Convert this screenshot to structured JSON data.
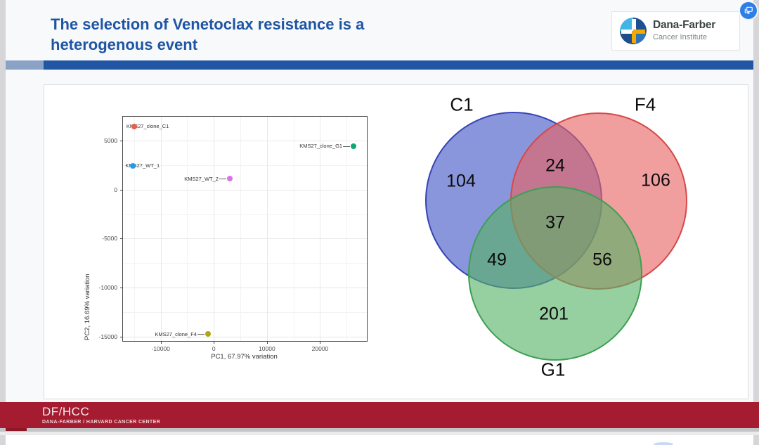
{
  "slide": {
    "title_lines": [
      "The selection of Venetoclax resistance is a",
      "heterogenous event"
    ],
    "title_color": "#1e55a4",
    "accent_bar_dark": "#2156a4",
    "accent_bar_light": "#8ba2c7"
  },
  "logo": {
    "name": "Dana-Farber",
    "subtitle": "Cancer Institute",
    "icon": "dana-farber-pinwheel-icon",
    "colors": {
      "light_blue": "#41b6e6",
      "navy": "#1d4f91",
      "blue": "#2e75b6",
      "orange": "#f5a800"
    }
  },
  "badge": {
    "icon": "present-to-display-icon",
    "color": "#2d7ee9"
  },
  "footer": {
    "acronym": "DF/HCC",
    "subtitle": "DANA-FARBER / HARVARD CANCER CENTER",
    "background": "#a51c30"
  },
  "chart_data": [
    {
      "type": "scatter",
      "title": "",
      "xlabel": "PC1, 67.97% variation",
      "ylabel": "PC2, 16.69% variation",
      "xlim": [
        -17100,
        28800
      ],
      "ylim": [
        -15400,
        7400
      ],
      "xticks": [
        -10000,
        0,
        10000,
        20000
      ],
      "yticks": [
        5000,
        0,
        -5000,
        -10000,
        -15000
      ],
      "grid": true,
      "points": [
        {
          "label": "KMS27_clone_C1",
          "x": -15000,
          "y": 6400,
          "color": "#e8604c",
          "connector": false
        },
        {
          "label": "KMS27_WT_1",
          "x": -15200,
          "y": 2400,
          "color": "#2499f0",
          "connector": false
        },
        {
          "label": "KMS27_WT_2",
          "x": 3000,
          "y": 1100,
          "color": "#dd71ea",
          "connector": true
        },
        {
          "label": "KMS27_clone_G1",
          "x": 26300,
          "y": 4400,
          "color": "#0fa876",
          "connector": true
        },
        {
          "label": "KMS27_clone_F4",
          "x": -1100,
          "y": -14700,
          "color": "#b2a512",
          "connector": true
        }
      ]
    },
    {
      "type": "venn",
      "sets": [
        {
          "id": "C1",
          "label": "C1",
          "fill": "#4156c5",
          "stroke": "#3644b5"
        },
        {
          "id": "F4",
          "label": "F4",
          "fill": "#e96262",
          "stroke": "#d84747"
        },
        {
          "id": "G1",
          "label": "G1",
          "fill": "#55b266",
          "stroke": "#3ba052"
        }
      ],
      "regions": {
        "C1": 104,
        "F4": 106,
        "G1": 201,
        "C1∩F4": 24,
        "C1∩G1": 49,
        "F4∩G1": 56,
        "C1∩F4∩G1": 37
      }
    }
  ]
}
